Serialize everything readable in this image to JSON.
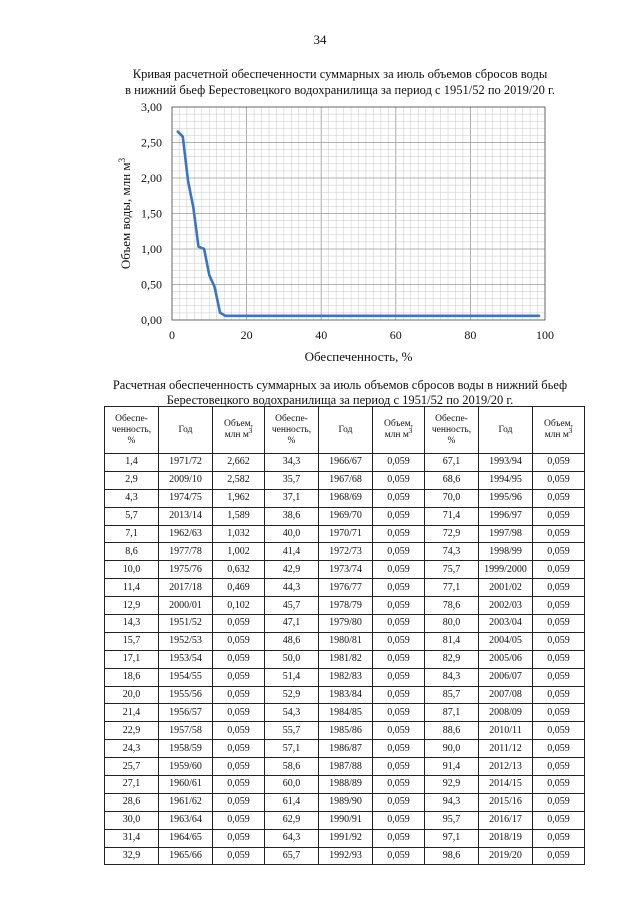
{
  "page_number": "34",
  "chart_title_line1": "Кривая расчетной обеспеченности суммарных за июль объемов сбросов воды",
  "chart_title_line2": "в нижний бьеф Берестовецкого водохранилища за период с 1951/52 по 2019/20 г.",
  "chart_data": {
    "type": "line",
    "title": "Кривая расчетной обеспеченности суммарных за июль объемов сбросов воды в нижний бьеф Берестовецкого водохранилища за период с 1951/52 по 2019/20 г.",
    "xlabel": "Обеспеченность, %",
    "ylabel": "Объем  воды, млн м",
    "ylabel_sup": "3",
    "xlim": [
      0,
      100
    ],
    "ylim": [
      0,
      3
    ],
    "x_ticks": [
      "0",
      "20",
      "40",
      "60",
      "80",
      "100"
    ],
    "y_ticks": [
      "0,00",
      "0,50",
      "1,00",
      "1,50",
      "2,00",
      "2,50",
      "3,00"
    ],
    "grid": true,
    "series": [
      {
        "name": "Объем",
        "color": "#3a74c4",
        "x": [
          1.4,
          2.9,
          4.3,
          5.7,
          7.1,
          8.6,
          10.0,
          11.4,
          12.9,
          14.3,
          98.6
        ],
        "y": [
          2.662,
          2.582,
          1.962,
          1.589,
          1.032,
          1.002,
          0.632,
          0.469,
          0.102,
          0.059,
          0.059
        ]
      }
    ]
  },
  "table_title_line1": "Расчетная обеспеченность суммарных за июль объемов сбросов воды в нижний бьеф",
  "table_title_line2": "Берестовецкого водохранилища за период с 1951/52 по 2019/20 г.",
  "headers": {
    "prob_1": "Обеспе-",
    "prob_2": "ченность,",
    "prob_3": "%",
    "year": "Год",
    "vol_1": "Объем,",
    "vol_2": "млн м",
    "vol_sup": "3"
  },
  "rows": [
    [
      "1,4",
      "1971/72",
      "2,662",
      "34,3",
      "1966/67",
      "0,059",
      "67,1",
      "1993/94",
      "0,059"
    ],
    [
      "2,9",
      "2009/10",
      "2,582",
      "35,7",
      "1967/68",
      "0,059",
      "68,6",
      "1994/95",
      "0,059"
    ],
    [
      "4,3",
      "1974/75",
      "1,962",
      "37,1",
      "1968/69",
      "0,059",
      "70,0",
      "1995/96",
      "0,059"
    ],
    [
      "5,7",
      "2013/14",
      "1,589",
      "38,6",
      "1969/70",
      "0,059",
      "71,4",
      "1996/97",
      "0,059"
    ],
    [
      "7,1",
      "1962/63",
      "1,032",
      "40,0",
      "1970/71",
      "0,059",
      "72,9",
      "1997/98",
      "0,059"
    ],
    [
      "8,6",
      "1977/78",
      "1,002",
      "41,4",
      "1972/73",
      "0,059",
      "74,3",
      "1998/99",
      "0,059"
    ],
    [
      "10,0",
      "1975/76",
      "0,632",
      "42,9",
      "1973/74",
      "0,059",
      "75,7",
      "1999/2000",
      "0,059"
    ],
    [
      "11,4",
      "2017/18",
      "0,469",
      "44,3",
      "1976/77",
      "0,059",
      "77,1",
      "2001/02",
      "0,059"
    ],
    [
      "12,9",
      "2000/01",
      "0,102",
      "45,7",
      "1978/79",
      "0,059",
      "78,6",
      "2002/03",
      "0,059"
    ],
    [
      "14,3",
      "1951/52",
      "0,059",
      "47,1",
      "1979/80",
      "0,059",
      "80,0",
      "2003/04",
      "0,059"
    ],
    [
      "15,7",
      "1952/53",
      "0,059",
      "48,6",
      "1980/81",
      "0,059",
      "81,4",
      "2004/05",
      "0,059"
    ],
    [
      "17,1",
      "1953/54",
      "0,059",
      "50,0",
      "1981/82",
      "0,059",
      "82,9",
      "2005/06",
      "0,059"
    ],
    [
      "18,6",
      "1954/55",
      "0,059",
      "51,4",
      "1982/83",
      "0,059",
      "84,3",
      "2006/07",
      "0,059"
    ],
    [
      "20,0",
      "1955/56",
      "0,059",
      "52,9",
      "1983/84",
      "0,059",
      "85,7",
      "2007/08",
      "0,059"
    ],
    [
      "21,4",
      "1956/57",
      "0,059",
      "54,3",
      "1984/85",
      "0,059",
      "87,1",
      "2008/09",
      "0,059"
    ],
    [
      "22,9",
      "1957/58",
      "0,059",
      "55,7",
      "1985/86",
      "0,059",
      "88,6",
      "2010/11",
      "0,059"
    ],
    [
      "24,3",
      "1958/59",
      "0,059",
      "57,1",
      "1986/87",
      "0,059",
      "90,0",
      "2011/12",
      "0,059"
    ],
    [
      "25,7",
      "1959/60",
      "0,059",
      "58,6",
      "1987/88",
      "0,059",
      "91,4",
      "2012/13",
      "0,059"
    ],
    [
      "27,1",
      "1960/61",
      "0,059",
      "60,0",
      "1988/89",
      "0,059",
      "92,9",
      "2014/15",
      "0,059"
    ],
    [
      "28,6",
      "1961/62",
      "0,059",
      "61,4",
      "1989/90",
      "0,059",
      "94,3",
      "2015/16",
      "0,059"
    ],
    [
      "30,0",
      "1963/64",
      "0,059",
      "62,9",
      "1990/91",
      "0,059",
      "95,7",
      "2016/17",
      "0,059"
    ],
    [
      "31,4",
      "1964/65",
      "0,059",
      "64,3",
      "1991/92",
      "0,059",
      "97,1",
      "2018/19",
      "0,059"
    ],
    [
      "32,9",
      "1965/66",
      "0,059",
      "65,7",
      "1992/93",
      "0,059",
      "98,6",
      "2019/20",
      "0,059"
    ]
  ]
}
